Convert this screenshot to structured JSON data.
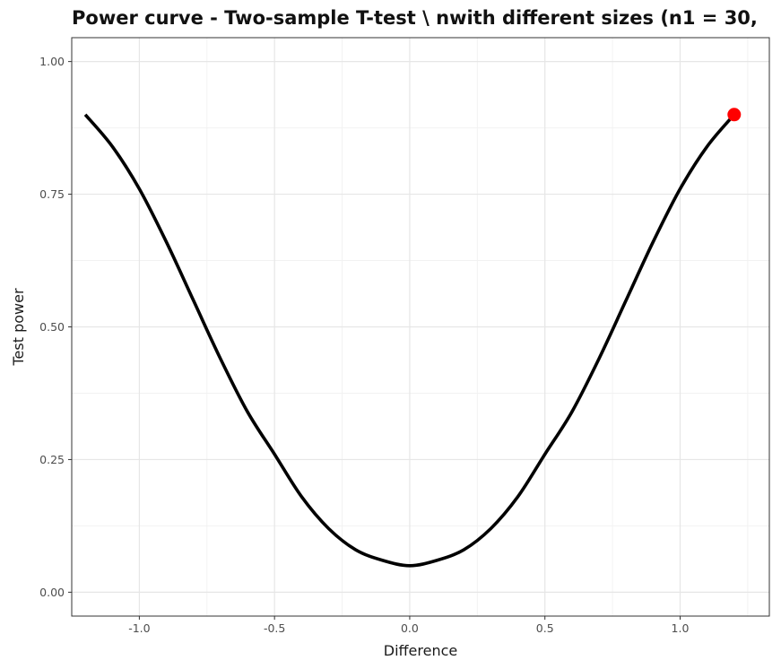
{
  "chart_data": {
    "type": "line",
    "title": "Power curve - Two-sample T-test \\ nwith different sizes (n1 = 30,",
    "xlabel": "Difference",
    "ylabel": "Test power",
    "xlim": [
      -1.25,
      1.33
    ],
    "ylim": [
      -0.045,
      1.045
    ],
    "x_ticks": [
      -1.0,
      -0.5,
      0.0,
      0.5,
      1.0
    ],
    "x_tick_labels": [
      "-1.0",
      "-0.5",
      "0.0",
      "0.5",
      "1.0"
    ],
    "y_ticks": [
      0.0,
      0.25,
      0.5,
      0.75,
      1.0
    ],
    "y_tick_labels": [
      "0.00",
      "0.25",
      "0.50",
      "0.75",
      "1.00"
    ],
    "grid": true,
    "series": [
      {
        "color": "#000000",
        "x": [
          -1.2,
          -1.1,
          -1.0,
          -0.9,
          -0.8,
          -0.7,
          -0.6,
          -0.5,
          -0.4,
          -0.3,
          -0.2,
          -0.1,
          0.0,
          0.1,
          0.2,
          0.3,
          0.4,
          0.5,
          0.6,
          0.7,
          0.8,
          0.9,
          1.0,
          1.1,
          1.2
        ],
        "y": [
          0.9,
          0.84,
          0.76,
          0.66,
          0.55,
          0.44,
          0.34,
          0.26,
          0.18,
          0.12,
          0.08,
          0.06,
          0.05,
          0.06,
          0.08,
          0.12,
          0.18,
          0.26,
          0.34,
          0.44,
          0.55,
          0.66,
          0.76,
          0.84,
          0.9
        ]
      }
    ],
    "highlight_point": {
      "x": 1.2,
      "y": 0.9,
      "color": "#ff0000"
    }
  }
}
